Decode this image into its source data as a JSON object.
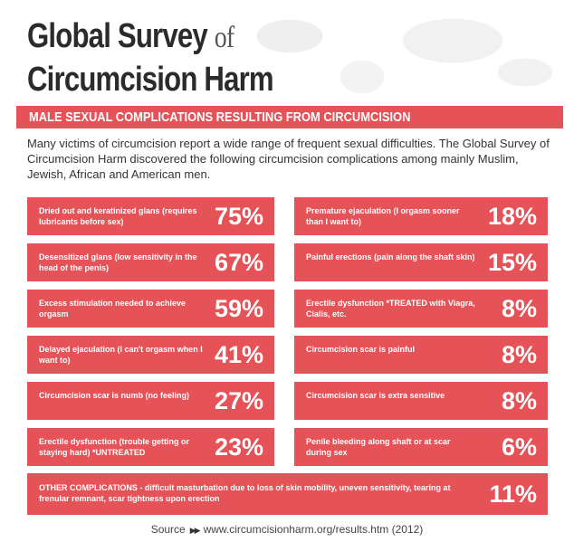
{
  "title": {
    "line1": "Global Survey",
    "of": "of",
    "line2": "Circumcision Harm"
  },
  "banner": "MALE SEXUAL COMPLICATIONS RESULTING FROM CIRCUMCISION",
  "intro": "Many victims of circumcision report a wide range of frequent sexual difficulties. The Global Survey of Circumcision Harm discovered the following circumcision complications among mainly Muslim, Jewish, African and American men.",
  "left_items": [
    {
      "label": "Dried out and keratinized glans (requires lubricants before sex)",
      "value": "75%"
    },
    {
      "label": "Desensitized glans (low sensitivity in the head of the penis)",
      "value": "67%"
    },
    {
      "label": "Excess stimulation needed to achieve orgasm",
      "value": "59%"
    },
    {
      "label": "Delayed ejaculation (I can't orgasm when I want to)",
      "value": "41%"
    },
    {
      "label": "Circumcision scar is numb (no feeling)",
      "value": "27%"
    },
    {
      "label": "Erectile dysfunction (trouble getting or staying hard) *UNTREATED",
      "value": "23%"
    }
  ],
  "right_items": [
    {
      "label": "Premature ejaculation (I orgasm sooner than I want to)",
      "value": "18%"
    },
    {
      "label": "Painful erections (pain along the shaft skin)",
      "value": "15%"
    },
    {
      "label": "Erectile dysfunction *TREATED with Viagra, Cialis, etc.",
      "value": "8%"
    },
    {
      "label": "Circumcision scar is painful",
      "value": "8%"
    },
    {
      "label": "Circumcision scar is extra sensitive",
      "value": "8%"
    },
    {
      "label": "Penile bleeding along shaft or at scar during sex",
      "value": "6%"
    }
  ],
  "other": {
    "label": "OTHER COMPLICATIONS - difficult masturbation due to loss of skin mobility, uneven sensitivity, tearing at frenular remnant, scar tightness upon erection",
    "value": "11%"
  },
  "source": {
    "label": "Source",
    "url": "www.circumcisionharm.org/results.htm (2012)"
  },
  "colors": {
    "accent": "#e55257",
    "text": "#333333"
  }
}
